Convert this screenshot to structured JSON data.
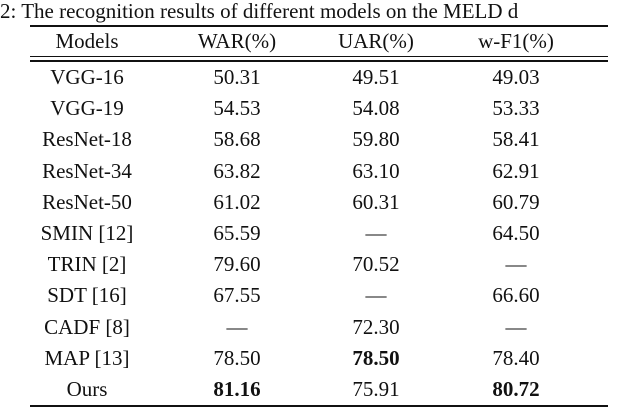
{
  "caption": "2: The recognition results of different models on the MELD d",
  "table": {
    "header": [
      "Models",
      "WAR(%)",
      "UAR(%)",
      "w-F1(%)"
    ],
    "rows": [
      [
        "VGG-16",
        "50.31",
        "49.51",
        "49.03"
      ],
      [
        "VGG-19",
        "54.53",
        "54.08",
        "53.33"
      ],
      [
        "ResNet-18",
        "58.68",
        "59.80",
        "58.41"
      ],
      [
        "ResNet-34",
        "63.82",
        "63.10",
        "62.91"
      ],
      [
        "ResNet-50",
        "61.02",
        "60.31",
        "60.79"
      ],
      [
        "SMIN [12]",
        "65.59",
        "—",
        "64.50"
      ],
      [
        "TRIN [2]",
        "79.60",
        "70.52",
        "—"
      ],
      [
        "SDT [16]",
        "67.55",
        "—",
        "66.60"
      ],
      [
        "CADF [8]",
        "—",
        "72.30",
        "—"
      ],
      [
        "MAP [13]",
        "78.50",
        "78.50",
        "78.40"
      ],
      [
        "Ours",
        "81.16",
        "75.91",
        "80.72"
      ]
    ],
    "bold": [
      [
        9,
        2
      ],
      [
        10,
        1
      ],
      [
        10,
        3
      ]
    ]
  }
}
